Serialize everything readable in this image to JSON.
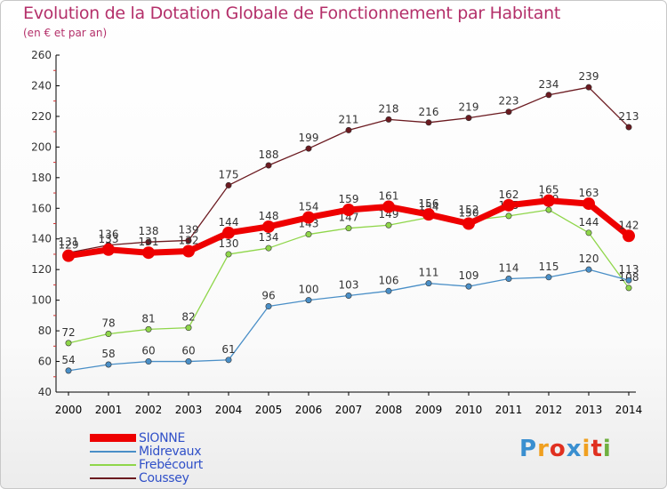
{
  "chart_data": {
    "type": "line",
    "title": "Evolution de la Dotation Globale de Fonctionnement par Habitant",
    "subtitle": "(en € et par an)",
    "xlabel": "",
    "ylabel": "",
    "x": [
      "2000",
      "2001",
      "2002",
      "2003",
      "2004",
      "2005",
      "2006",
      "2007",
      "2008",
      "2009",
      "2010",
      "2011",
      "2012",
      "2013",
      "2014"
    ],
    "ylim": [
      40,
      260
    ],
    "yticks": [
      40,
      60,
      80,
      100,
      120,
      140,
      160,
      180,
      200,
      220,
      240,
      260
    ],
    "grid": false,
    "legend_position": "bottom-left",
    "series": [
      {
        "name": "Coussey",
        "color": "#6b1a20",
        "values": [
          131,
          136,
          138,
          139,
          175,
          188,
          199,
          211,
          218,
          216,
          219,
          223,
          234,
          239,
          213
        ]
      },
      {
        "name": "Frebécourt",
        "color": "#8fd64a",
        "values": [
          72,
          78,
          81,
          82,
          130,
          134,
          143,
          147,
          149,
          154,
          152,
          155,
          159,
          144,
          108
        ]
      },
      {
        "name": "Midrevaux",
        "color": "#4a8fc7",
        "values": [
          54,
          58,
          60,
          60,
          61,
          96,
          100,
          103,
          106,
          111,
          109,
          114,
          115,
          120,
          113
        ]
      },
      {
        "name": "SIONNE",
        "color": "#ee0000",
        "values": [
          129,
          133,
          131,
          132,
          144,
          148,
          154,
          159,
          161,
          156,
          150,
          162,
          165,
          163,
          142
        ]
      }
    ]
  },
  "legend": {
    "items": [
      "SIONNE",
      "Midrevaux",
      "Frebécourt",
      "Coussey"
    ]
  },
  "logo": {
    "letters": [
      "P",
      "r",
      "o",
      "x",
      "i",
      "t",
      "i"
    ],
    "colors": [
      "#3a8fd0",
      "#f0a020",
      "#e03020",
      "#3a8fd0",
      "#f0a020",
      "#e03020",
      "#70b040"
    ]
  }
}
